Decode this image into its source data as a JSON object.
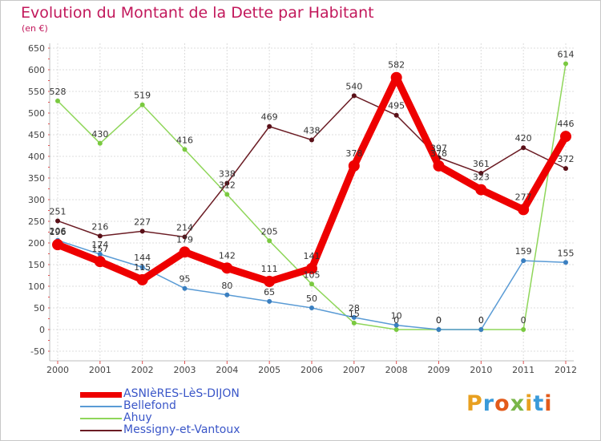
{
  "header": {
    "title": "Evolution du Montant de la Dette par Habitant",
    "subtitle": "(en €)"
  },
  "logo": {
    "text": "Proxiti",
    "colors": [
      "#e8a020",
      "#3a9ad9",
      "#e35a1a",
      "#7ab648",
      "#e8a020",
      "#3a9ad9",
      "#e35a1a"
    ]
  },
  "chart_data": {
    "type": "line",
    "title": "Evolution du Montant de la Dette par Habitant",
    "subtitle": "(en €)",
    "xlabel": "",
    "ylabel": "",
    "x": [
      "2000",
      "2001",
      "2002",
      "2003",
      "2004",
      "2005",
      "2006",
      "2007",
      "2008",
      "2009",
      "2010",
      "2011",
      "2012"
    ],
    "ylim": [
      -50,
      650
    ],
    "yticks": [
      -50,
      0,
      50,
      100,
      150,
      200,
      250,
      300,
      350,
      400,
      450,
      500,
      550,
      600,
      650
    ],
    "grid": true,
    "legend": "bottom-left",
    "series": [
      {
        "name": "ASNIèRES-LèS-DIJON",
        "color": "#ee0000",
        "values": [
          196,
          157,
          115,
          179,
          142,
          111,
          141,
          378,
          582,
          378,
          323,
          277,
          446
        ]
      },
      {
        "name": "Bellefond",
        "color": "#5a9bd5",
        "values": [
          206,
          174,
          144,
          95,
          80,
          65,
          50,
          28,
          10,
          0,
          0,
          159,
          155
        ]
      },
      {
        "name": "Ahuy",
        "color": "#8fd65a",
        "values": [
          528,
          430,
          519,
          416,
          312,
          205,
          105,
          15,
          0,
          0,
          0,
          0,
          614
        ]
      },
      {
        "name": "Messigny-et-Vantoux",
        "color": "#6b1c24",
        "values": [
          251,
          216,
          227,
          214,
          338,
          469,
          438,
          540,
          495,
          397,
          361,
          420,
          372
        ]
      }
    ]
  }
}
